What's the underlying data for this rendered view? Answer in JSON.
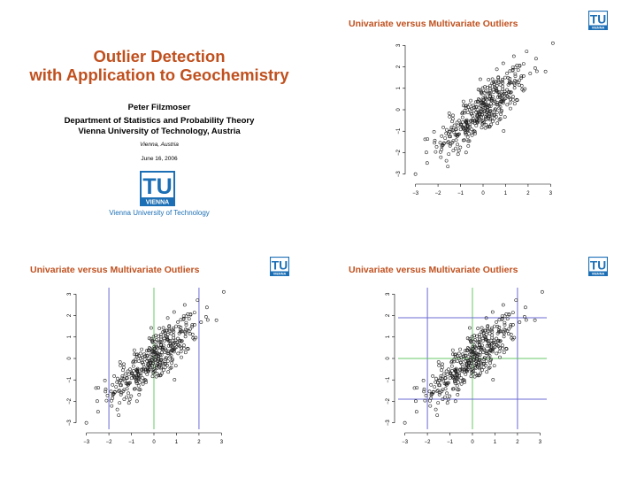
{
  "title_slide": {
    "title_line1": "Outlier Detection",
    "title_line2": "with Application to Geochemistry",
    "author": "Peter Filzmoser",
    "affiliation_line1": "Department of Statistics and Probability Theory",
    "affiliation_line2": "Vienna University of Technology, Austria",
    "location": "Vienna, Austria",
    "date": "June 16, 2006",
    "university": "Vienna University of Technology"
  },
  "logo": {
    "top": "TU",
    "bottom": "VIENNA",
    "color": "#1c6fb5"
  },
  "slides": [
    {
      "title": "Univariate versus Multivariate Outliers"
    },
    {
      "title": "Univariate versus Multivariate Outliers"
    },
    {
      "title": "Univariate versus Multivariate Outliers"
    }
  ],
  "chart_data": [
    {
      "type": "scatter",
      "xlim": [
        -3.3,
        3.3
      ],
      "ylim": [
        -3.3,
        3.3
      ],
      "x_ticks": [
        "−3",
        "−2",
        "−1",
        "0",
        "1",
        "2",
        "3"
      ],
      "y_ticks": [
        "−3",
        "−2",
        "−1",
        "0",
        "1",
        "2",
        "3"
      ],
      "correlation": 0.8,
      "n_points": 400,
      "vlines": [],
      "hlines": []
    },
    {
      "type": "scatter",
      "xlim": [
        -3.3,
        3.3
      ],
      "ylim": [
        -3.3,
        3.3
      ],
      "x_ticks": [
        "−3",
        "−2",
        "−1",
        "0",
        "1",
        "2",
        "3"
      ],
      "y_ticks": [
        "−3",
        "−2",
        "−1",
        "0",
        "1",
        "2",
        "3"
      ],
      "correlation": 0.8,
      "n_points": 400,
      "vlines": [
        {
          "x": -2.0,
          "color": "#6b6bd6"
        },
        {
          "x": 0.0,
          "color": "#68c868"
        },
        {
          "x": 2.0,
          "color": "#6b6bd6"
        }
      ],
      "hlines": []
    },
    {
      "type": "scatter",
      "xlim": [
        -3.3,
        3.3
      ],
      "ylim": [
        -3.3,
        3.3
      ],
      "x_ticks": [
        "−3",
        "−2",
        "−1",
        "0",
        "1",
        "2",
        "3"
      ],
      "y_ticks": [
        "−3",
        "−2",
        "−1",
        "0",
        "1",
        "2",
        "3"
      ],
      "correlation": 0.8,
      "n_points": 400,
      "vlines": [
        {
          "x": -2.0,
          "color": "#6b6bd6"
        },
        {
          "x": 0.0,
          "color": "#68c868"
        },
        {
          "x": 2.0,
          "color": "#6b6bd6"
        }
      ],
      "hlines": [
        {
          "y": 1.9,
          "color": "#6b6bd6"
        },
        {
          "y": 0.0,
          "color": "#68c868"
        },
        {
          "y": -1.9,
          "color": "#6b6bd6"
        }
      ]
    }
  ]
}
